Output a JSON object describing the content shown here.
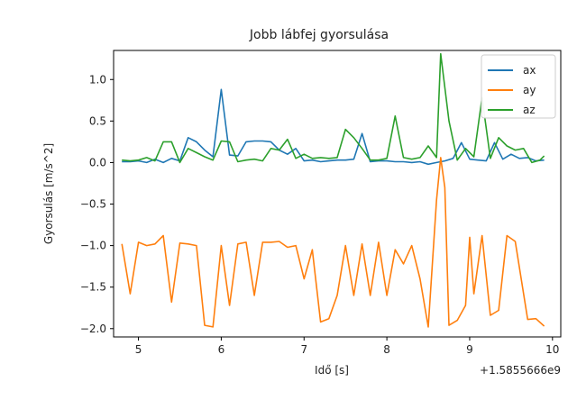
{
  "chart_data": {
    "type": "line",
    "title": "Jobb lábfej gyorsulása",
    "xlabel": "Idő [s]",
    "ylabel": "Gyorsulás [m/s^2]",
    "x_offset_label": "+1.5855666e9",
    "xlim": [
      4.7,
      10.1
    ],
    "ylim": [
      -2.1,
      1.35
    ],
    "x_ticks": [
      5,
      6,
      7,
      8,
      9,
      10
    ],
    "x_tick_labels": [
      "5",
      "6",
      "7",
      "8",
      "9",
      "10"
    ],
    "y_ticks": [
      1.0,
      0.5,
      0.0,
      -0.5,
      -1.0,
      -1.5,
      -2.0
    ],
    "y_tick_labels": [
      "1.0",
      "0.5",
      "0.0",
      "−0.5",
      "−1.0",
      "−1.5",
      "−2.0"
    ],
    "grid": false,
    "legend_position": "top-right",
    "series": [
      {
        "name": "ax",
        "color": "#1f77b4",
        "points": [
          [
            4.8,
            0.01
          ],
          [
            4.9,
            0.01
          ],
          [
            5.0,
            0.02
          ],
          [
            5.1,
            0.0
          ],
          [
            5.2,
            0.04
          ],
          [
            5.3,
            0.0
          ],
          [
            5.4,
            0.05
          ],
          [
            5.5,
            0.02
          ],
          [
            5.6,
            0.3
          ],
          [
            5.7,
            0.25
          ],
          [
            5.8,
            0.15
          ],
          [
            5.9,
            0.07
          ],
          [
            6.0,
            0.88
          ],
          [
            6.1,
            0.09
          ],
          [
            6.2,
            0.08
          ],
          [
            6.3,
            0.25
          ],
          [
            6.4,
            0.26
          ],
          [
            6.5,
            0.26
          ],
          [
            6.6,
            0.25
          ],
          [
            6.7,
            0.15
          ],
          [
            6.8,
            0.1
          ],
          [
            6.9,
            0.17
          ],
          [
            7.0,
            0.02
          ],
          [
            7.1,
            0.03
          ],
          [
            7.2,
            0.01
          ],
          [
            7.3,
            0.02
          ],
          [
            7.4,
            0.03
          ],
          [
            7.5,
            0.03
          ],
          [
            7.6,
            0.04
          ],
          [
            7.7,
            0.35
          ],
          [
            7.8,
            0.01
          ],
          [
            7.9,
            0.02
          ],
          [
            8.0,
            0.02
          ],
          [
            8.1,
            0.01
          ],
          [
            8.2,
            0.01
          ],
          [
            8.3,
            0.0
          ],
          [
            8.4,
            0.01
          ],
          [
            8.5,
            -0.02
          ],
          [
            8.6,
            0.0
          ],
          [
            8.7,
            0.02
          ],
          [
            8.8,
            0.05
          ],
          [
            8.9,
            0.24
          ],
          [
            9.0,
            0.04
          ],
          [
            9.1,
            0.03
          ],
          [
            9.2,
            0.02
          ],
          [
            9.3,
            0.24
          ],
          [
            9.4,
            0.04
          ],
          [
            9.5,
            0.1
          ],
          [
            9.6,
            0.05
          ],
          [
            9.7,
            0.06
          ],
          [
            9.8,
            0.02
          ],
          [
            9.9,
            0.03
          ]
        ]
      },
      {
        "name": "ay",
        "color": "#ff7f0e",
        "points": [
          [
            4.8,
            -0.98
          ],
          [
            4.9,
            -1.58
          ],
          [
            5.0,
            -0.96
          ],
          [
            5.1,
            -1.0
          ],
          [
            5.2,
            -0.98
          ],
          [
            5.3,
            -0.88
          ],
          [
            5.4,
            -1.68
          ],
          [
            5.5,
            -0.97
          ],
          [
            5.6,
            -0.98
          ],
          [
            5.7,
            -1.0
          ],
          [
            5.8,
            -1.96
          ],
          [
            5.9,
            -1.98
          ],
          [
            6.0,
            -1.0
          ],
          [
            6.1,
            -1.72
          ],
          [
            6.2,
            -0.98
          ],
          [
            6.3,
            -0.96
          ],
          [
            6.4,
            -1.6
          ],
          [
            6.5,
            -0.96
          ],
          [
            6.6,
            -0.96
          ],
          [
            6.7,
            -0.95
          ],
          [
            6.8,
            -1.02
          ],
          [
            6.9,
            -1.0
          ],
          [
            7.0,
            -1.4
          ],
          [
            7.1,
            -1.05
          ],
          [
            7.2,
            -1.92
          ],
          [
            7.3,
            -1.88
          ],
          [
            7.4,
            -1.6
          ],
          [
            7.5,
            -1.0
          ],
          [
            7.6,
            -1.6
          ],
          [
            7.7,
            -0.98
          ],
          [
            7.8,
            -1.6
          ],
          [
            7.9,
            -0.96
          ],
          [
            8.0,
            -1.6
          ],
          [
            8.1,
            -1.05
          ],
          [
            8.2,
            -1.22
          ],
          [
            8.3,
            -1.0
          ],
          [
            8.4,
            -1.4
          ],
          [
            8.5,
            -1.98
          ],
          [
            8.6,
            -0.45
          ],
          [
            8.65,
            0.06
          ],
          [
            8.7,
            -0.3
          ],
          [
            8.75,
            -1.96
          ],
          [
            8.85,
            -1.9
          ],
          [
            8.95,
            -1.72
          ],
          [
            9.0,
            -0.9
          ],
          [
            9.05,
            -1.58
          ],
          [
            9.15,
            -0.88
          ],
          [
            9.25,
            -1.84
          ],
          [
            9.35,
            -1.78
          ],
          [
            9.45,
            -0.88
          ],
          [
            9.55,
            -0.95
          ],
          [
            9.7,
            -1.89
          ],
          [
            9.8,
            -1.88
          ],
          [
            9.9,
            -1.97
          ]
        ]
      },
      {
        "name": "az",
        "color": "#2ca02c",
        "points": [
          [
            4.8,
            0.03
          ],
          [
            4.9,
            0.02
          ],
          [
            5.0,
            0.03
          ],
          [
            5.1,
            0.06
          ],
          [
            5.2,
            0.02
          ],
          [
            5.3,
            0.25
          ],
          [
            5.4,
            0.25
          ],
          [
            5.5,
            0.0
          ],
          [
            5.6,
            0.17
          ],
          [
            5.7,
            0.12
          ],
          [
            5.8,
            0.07
          ],
          [
            5.9,
            0.03
          ],
          [
            6.0,
            0.26
          ],
          [
            6.1,
            0.25
          ],
          [
            6.2,
            0.01
          ],
          [
            6.3,
            0.03
          ],
          [
            6.4,
            0.04
          ],
          [
            6.5,
            0.02
          ],
          [
            6.6,
            0.17
          ],
          [
            6.7,
            0.15
          ],
          [
            6.8,
            0.28
          ],
          [
            6.9,
            0.05
          ],
          [
            7.0,
            0.1
          ],
          [
            7.1,
            0.05
          ],
          [
            7.2,
            0.06
          ],
          [
            7.3,
            0.05
          ],
          [
            7.4,
            0.06
          ],
          [
            7.5,
            0.4
          ],
          [
            7.6,
            0.3
          ],
          [
            7.7,
            0.17
          ],
          [
            7.8,
            0.03
          ],
          [
            7.9,
            0.03
          ],
          [
            8.0,
            0.05
          ],
          [
            8.1,
            0.56
          ],
          [
            8.2,
            0.06
          ],
          [
            8.3,
            0.04
          ],
          [
            8.4,
            0.06
          ],
          [
            8.5,
            0.2
          ],
          [
            8.6,
            0.06
          ],
          [
            8.65,
            1.31
          ],
          [
            8.75,
            0.5
          ],
          [
            8.85,
            0.03
          ],
          [
            8.95,
            0.17
          ],
          [
            9.05,
            0.07
          ],
          [
            9.15,
            0.78
          ],
          [
            9.25,
            0.05
          ],
          [
            9.35,
            0.3
          ],
          [
            9.45,
            0.2
          ],
          [
            9.55,
            0.15
          ],
          [
            9.65,
            0.17
          ],
          [
            9.75,
            0.0
          ],
          [
            9.85,
            0.03
          ],
          [
            9.9,
            0.08
          ]
        ]
      }
    ]
  }
}
